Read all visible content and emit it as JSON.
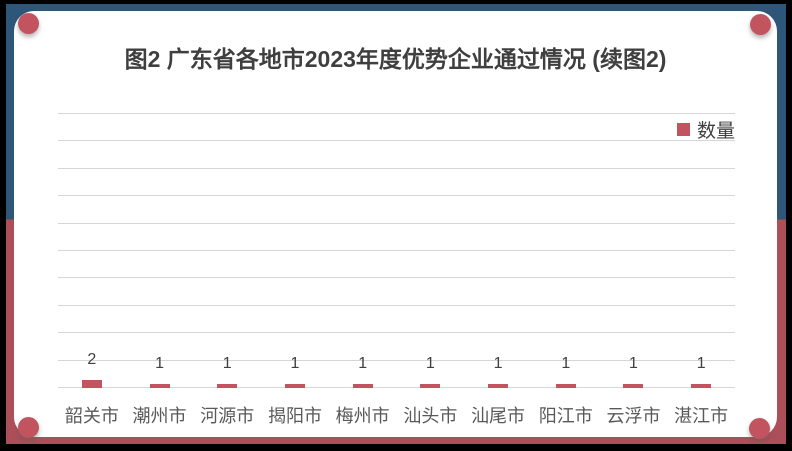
{
  "frame": {
    "outer_color": "#000000",
    "top_band_color": "#2e5678",
    "bottom_band_color": "#ad4f58",
    "corner_dot_color": "#c1545f",
    "card_color": "#ffffff"
  },
  "chart_data": {
    "type": "bar",
    "title": "图2 广东省各地市2023年度优势企业通过情况 (续图2)",
    "series_name": "数量",
    "categories": [
      "韶关市",
      "潮州市",
      "河源市",
      "揭阳市",
      "梅州市",
      "汕头市",
      "汕尾市",
      "阳江市",
      "云浮市",
      "湛江市"
    ],
    "values": [
      2,
      1,
      1,
      1,
      1,
      1,
      1,
      1,
      1,
      1
    ],
    "xlabel": "",
    "ylabel": "",
    "ylim": [
      0,
      70
    ],
    "gridline_count": 11,
    "grid": true,
    "y_axis_labels_visible": false,
    "legend_position": "top-right",
    "data_labels": true,
    "bar_color": "#c1545f",
    "gridline_color": "#d6d6d6",
    "title_color": "#3f3f3f",
    "tick_label_color": "#595959",
    "value_label_color": "#404040"
  }
}
